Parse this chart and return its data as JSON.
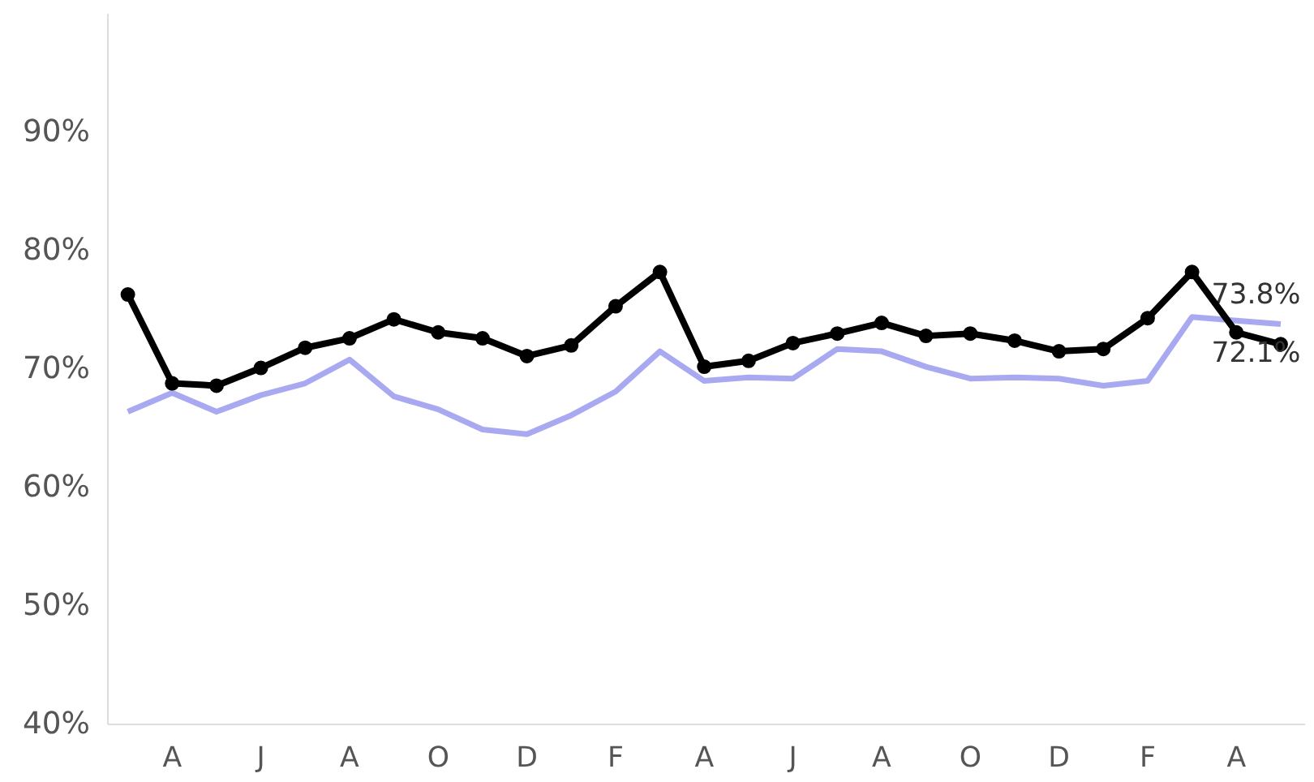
{
  "chart_data": {
    "type": "line",
    "categories": [
      null,
      "A",
      null,
      "J",
      null,
      "A",
      null,
      "O",
      null,
      "D",
      null,
      "F",
      null,
      "A",
      null,
      "J",
      null,
      "A",
      null,
      "O",
      null,
      "D",
      null,
      "F",
      null,
      "A",
      null
    ],
    "series": [
      {
        "color": "#a9a9f2",
        "marker": "none",
        "values": [
          66.4,
          68.0,
          66.4,
          67.8,
          68.8,
          70.8,
          67.7,
          66.6,
          64.9,
          64.5,
          66.1,
          68.1,
          71.5,
          69.0,
          69.3,
          69.2,
          71.7,
          71.5,
          70.2,
          69.2,
          69.3,
          69.2,
          68.6,
          69.0,
          74.4,
          74.1,
          73.8
        ],
        "value_labels": [
          null,
          null,
          null,
          null,
          null,
          null,
          null,
          null,
          null,
          null,
          null,
          null,
          null,
          null,
          null,
          null,
          null,
          null,
          null,
          null,
          null,
          null,
          null,
          null,
          null,
          null,
          "73.8%"
        ]
      },
      {
        "color": "#000000",
        "marker": "circle",
        "values": [
          76.3,
          68.8,
          68.6,
          70.1,
          71.8,
          72.6,
          74.2,
          73.1,
          72.6,
          71.1,
          72.0,
          75.3,
          78.2,
          70.2,
          70.7,
          72.2,
          73.0,
          73.9,
          72.8,
          73.0,
          72.4,
          71.5,
          71.7,
          74.3,
          78.2,
          73.1,
          72.1
        ],
        "value_labels": [
          null,
          null,
          null,
          null,
          null,
          null,
          null,
          null,
          null,
          null,
          null,
          null,
          null,
          null,
          null,
          null,
          null,
          null,
          null,
          null,
          null,
          null,
          null,
          null,
          null,
          null,
          "72.1%"
        ]
      }
    ],
    "ylim": [
      40,
      100
    ],
    "yticks": [
      {
        "value": 40,
        "label": "40%"
      },
      {
        "value": 50,
        "label": "50%"
      },
      {
        "value": 60,
        "label": "60%"
      },
      {
        "value": 70,
        "label": "70%"
      },
      {
        "value": 80,
        "label": "80%"
      },
      {
        "value": 90,
        "label": "90%"
      }
    ],
    "grid": false,
    "line_style": "solid"
  }
}
